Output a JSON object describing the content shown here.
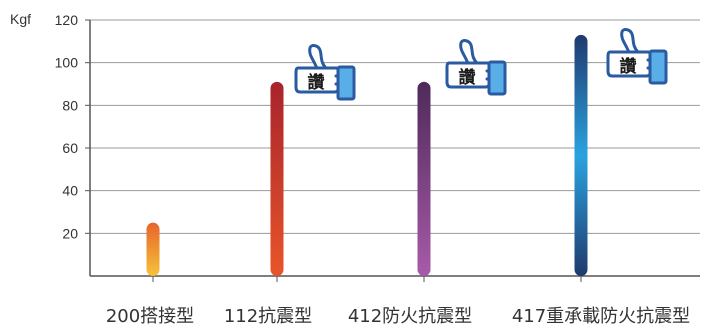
{
  "chart_data": {
    "type": "bar",
    "ylabel": "Kgf",
    "ylim": [
      0,
      120
    ],
    "yticks": [
      20,
      40,
      60,
      80,
      100,
      120
    ],
    "grid": true,
    "categories": [
      "200搭接型",
      "112抗震型",
      "412防火抗震型",
      "417重承載防火抗震型"
    ],
    "values": [
      25,
      91,
      91,
      113
    ],
    "bar_colors": [
      [
        "#f6c23a",
        "#e8642a"
      ],
      [
        "#e8552a",
        "#a8232c"
      ],
      [
        "#a85aa8",
        "#4e2a5a"
      ],
      [
        "#1f3a6e",
        "#2aa3e0"
      ]
    ],
    "badges": [
      {
        "category": "112抗震型",
        "text": "讚",
        "icon": "thumbs-up-icon"
      },
      {
        "category": "412防火抗震型",
        "text": "讚",
        "icon": "thumbs-up-icon"
      },
      {
        "category": "417重承載防火抗震型",
        "text": "讚",
        "icon": "thumbs-up-icon"
      }
    ]
  }
}
